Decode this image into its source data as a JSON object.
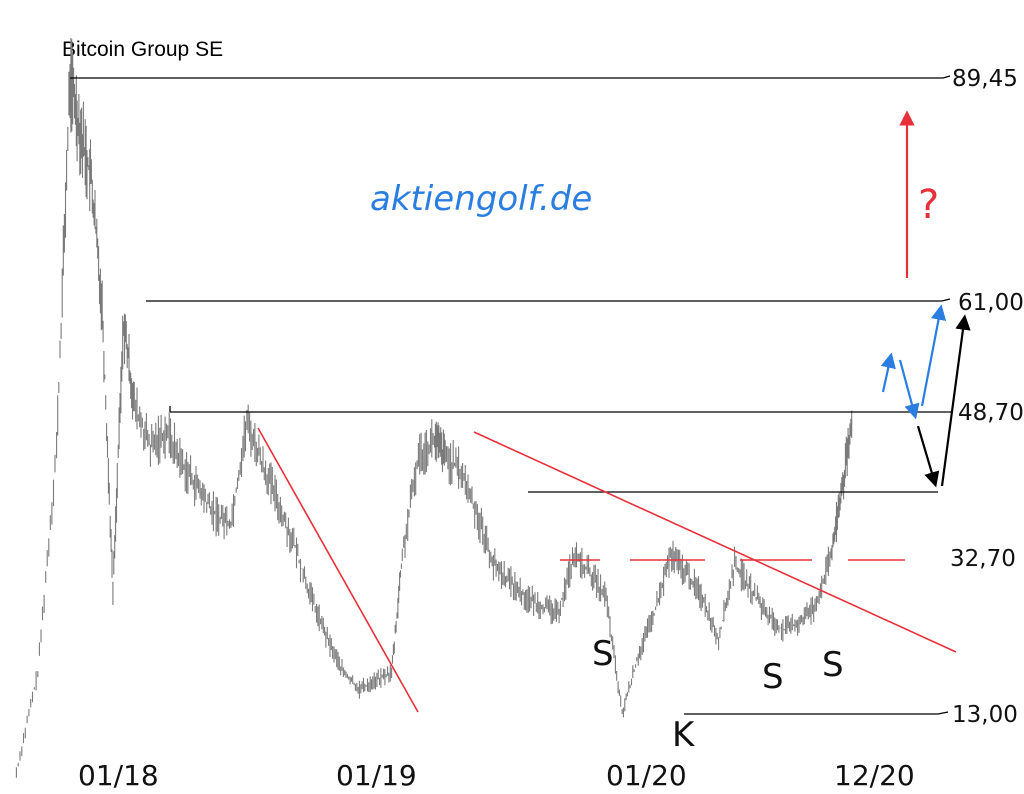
{
  "chart_data": {
    "type": "line",
    "title": "Bitcoin Group SE",
    "watermark": "aktiengolf.de",
    "x_ticks": [
      "01/18",
      "01/19",
      "01/20",
      "12/20"
    ],
    "levels": [
      {
        "label": "89,45",
        "value": 89.45
      },
      {
        "label": "61,00",
        "value": 61.0
      },
      {
        "label": "48,70",
        "value": 48.7
      },
      {
        "label": "32,70",
        "value": 32.7
      },
      {
        "label": "13,00",
        "value": 13.0
      }
    ],
    "pattern_labels": [
      "S",
      "K",
      "S",
      "S"
    ],
    "question_mark": "?",
    "series": [
      {
        "values_approx": [
          [
            2017.8,
            6
          ],
          [
            2017.88,
            18
          ],
          [
            2017.95,
            45
          ],
          [
            2018.0,
            89.45
          ],
          [
            2018.04,
            83
          ],
          [
            2018.08,
            77
          ],
          [
            2018.12,
            62
          ],
          [
            2018.16,
            28
          ],
          [
            2018.2,
            60
          ],
          [
            2018.24,
            50
          ],
          [
            2018.3,
            45
          ],
          [
            2018.36,
            47
          ],
          [
            2018.42,
            43
          ],
          [
            2018.48,
            40
          ],
          [
            2018.54,
            37
          ],
          [
            2018.6,
            36
          ],
          [
            2018.66,
            48
          ],
          [
            2018.72,
            43
          ],
          [
            2018.78,
            38
          ],
          [
            2018.84,
            33
          ],
          [
            2018.9,
            27
          ],
          [
            2018.96,
            22
          ],
          [
            2019.02,
            18
          ],
          [
            2019.08,
            16
          ],
          [
            2019.14,
            17
          ],
          [
            2019.2,
            18
          ],
          [
            2019.24,
            32
          ],
          [
            2019.3,
            44
          ],
          [
            2019.36,
            46
          ],
          [
            2019.4,
            44
          ],
          [
            2019.46,
            42
          ],
          [
            2019.52,
            37
          ],
          [
            2019.58,
            31
          ],
          [
            2019.64,
            29
          ],
          [
            2019.7,
            27
          ],
          [
            2019.76,
            26
          ],
          [
            2019.82,
            25
          ],
          [
            2019.88,
            32
          ],
          [
            2019.94,
            30
          ],
          [
            2020.0,
            27
          ],
          [
            2020.06,
            13
          ],
          [
            2020.12,
            20
          ],
          [
            2020.18,
            25
          ],
          [
            2020.24,
            32
          ],
          [
            2020.3,
            30
          ],
          [
            2020.36,
            27
          ],
          [
            2020.42,
            22
          ],
          [
            2020.48,
            31
          ],
          [
            2020.54,
            28
          ],
          [
            2020.6,
            25
          ],
          [
            2020.66,
            23
          ],
          [
            2020.72,
            24
          ],
          [
            2020.78,
            26
          ],
          [
            2020.84,
            32
          ],
          [
            2020.88,
            40
          ],
          [
            2020.92,
            48
          ]
        ]
      }
    ]
  }
}
